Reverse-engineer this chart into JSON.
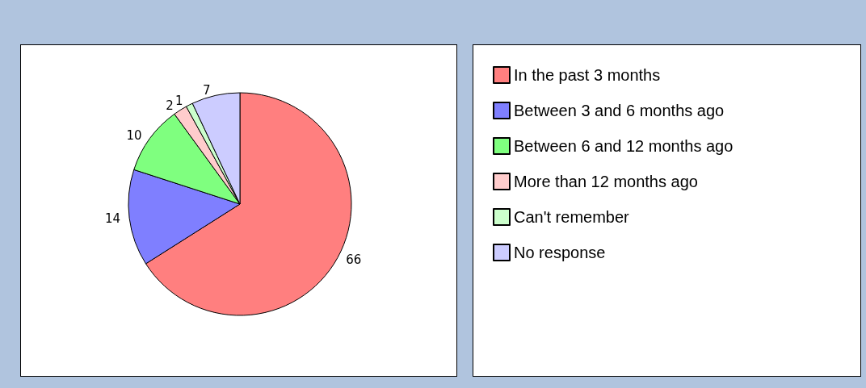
{
  "chart_data": {
    "type": "pie",
    "categories": [
      "In the past 3 months",
      "Between 3 and 6 months ago",
      "Between 6 and 12 months ago",
      "More than 12 months ago",
      "Can't remember",
      "No response"
    ],
    "values": [
      66,
      14,
      10,
      2,
      1,
      7
    ],
    "colors": [
      "#ff7f7f",
      "#7f7fff",
      "#7fff7f",
      "#ffcccc",
      "#ccffcc",
      "#ccccff"
    ],
    "data_labels": true,
    "legend": "right"
  }
}
